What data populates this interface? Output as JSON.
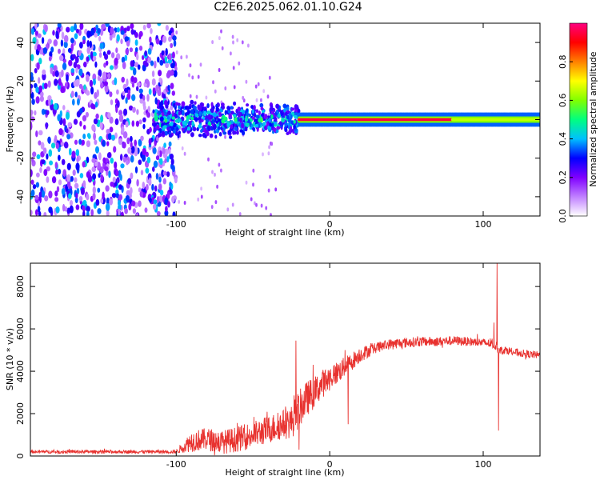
{
  "page": {
    "title": "C2E6.2025.062.01.10.G24"
  },
  "chart_data": [
    {
      "type": "heatmap",
      "title": "C2E6.2025.062.01.10.G24",
      "xlabel": "Height of straight line (km)",
      "ylabel": "Frequency (Hz)",
      "xlim": [
        -195,
        137
      ],
      "ylim": [
        -50,
        50
      ],
      "x_ticks": [
        -100,
        0,
        100
      ],
      "x_tick_labels": [
        "-100",
        "0",
        "100"
      ],
      "y_ticks": [
        -40,
        -20,
        0,
        20,
        40
      ],
      "y_tick_labels": [
        "-40",
        "-20",
        "0",
        "20",
        "40"
      ],
      "colorbar": {
        "label": "Normalized spectral amplitude",
        "range": [
          0,
          1
        ],
        "ticks": [
          0.0,
          0.2,
          0.4,
          0.6,
          0.8
        ],
        "tick_labels": [
          "0.0",
          "0.2",
          "0.4",
          "0.6",
          "0.8"
        ],
        "colors": [
          "#ffffff",
          "#c080ff",
          "#8000ff",
          "#0000ff",
          "#00c0ff",
          "#00ff80",
          "#80ff00",
          "#ffff00",
          "#ff8000",
          "#ff0000",
          "#ff0080"
        ]
      },
      "regions": [
        {
          "x": [
            -195,
            -100
          ],
          "description_values": "scattered noise, amplitude 0.1-0.4, frequency -50 to 50 Hz"
        },
        {
          "x": [
            -115,
            -20
          ],
          "center_freq": 0,
          "spread_hz": 8,
          "peak_amplitude": 0.45
        },
        {
          "x": [
            -20,
            137
          ],
          "center_freq": 0,
          "spread_hz": 3,
          "peak_amplitude": 1.0
        }
      ]
    },
    {
      "type": "line",
      "xlabel": "Height of straight line (km)",
      "ylabel": "SNR (10 * v/v)",
      "xlim": [
        -195,
        137
      ],
      "ylim": [
        0,
        9100
      ],
      "x_ticks": [
        -100,
        0,
        100
      ],
      "x_tick_labels": [
        "-100",
        "0",
        "100"
      ],
      "y_ticks": [
        0,
        2000,
        4000,
        6000,
        8000
      ],
      "y_tick_labels": [
        "0",
        "2000",
        "4000",
        "6000",
        "8000"
      ],
      "color": "#e8322f",
      "trend": {
        "x": [
          -195,
          -150,
          -100,
          -90,
          -80,
          -70,
          -60,
          -50,
          -40,
          -30,
          -25,
          -20,
          -15,
          -10,
          -5,
          0,
          10,
          20,
          30,
          40,
          50,
          60,
          70,
          80,
          90,
          100,
          105,
          108,
          110,
          115,
          120,
          130,
          137
        ],
        "y": [
          200,
          200,
          200,
          700,
          800,
          650,
          800,
          1000,
          1250,
          1500,
          1600,
          2200,
          2700,
          3000,
          3400,
          3700,
          4200,
          4800,
          5100,
          5300,
          5350,
          5400,
          5400,
          5450,
          5400,
          5350,
          5300,
          5200,
          5000,
          5000,
          4900,
          4800,
          4750
        ]
      },
      "noise_amplitude": {
        "x": [
          -195,
          -100,
          -90,
          -30,
          -20,
          0,
          30,
          137
        ],
        "y": [
          80,
          80,
          500,
          700,
          900,
          600,
          250,
          180
        ]
      },
      "spikes": [
        {
          "x": -22,
          "y": 5450
        },
        {
          "x": -20,
          "y": 300
        },
        {
          "x": 10,
          "y": 5000
        },
        {
          "x": 12,
          "y": 1500
        },
        {
          "x": 107,
          "y": 6300
        },
        {
          "x": 109,
          "y": 9100
        },
        {
          "x": 110,
          "y": 1200
        }
      ]
    }
  ]
}
